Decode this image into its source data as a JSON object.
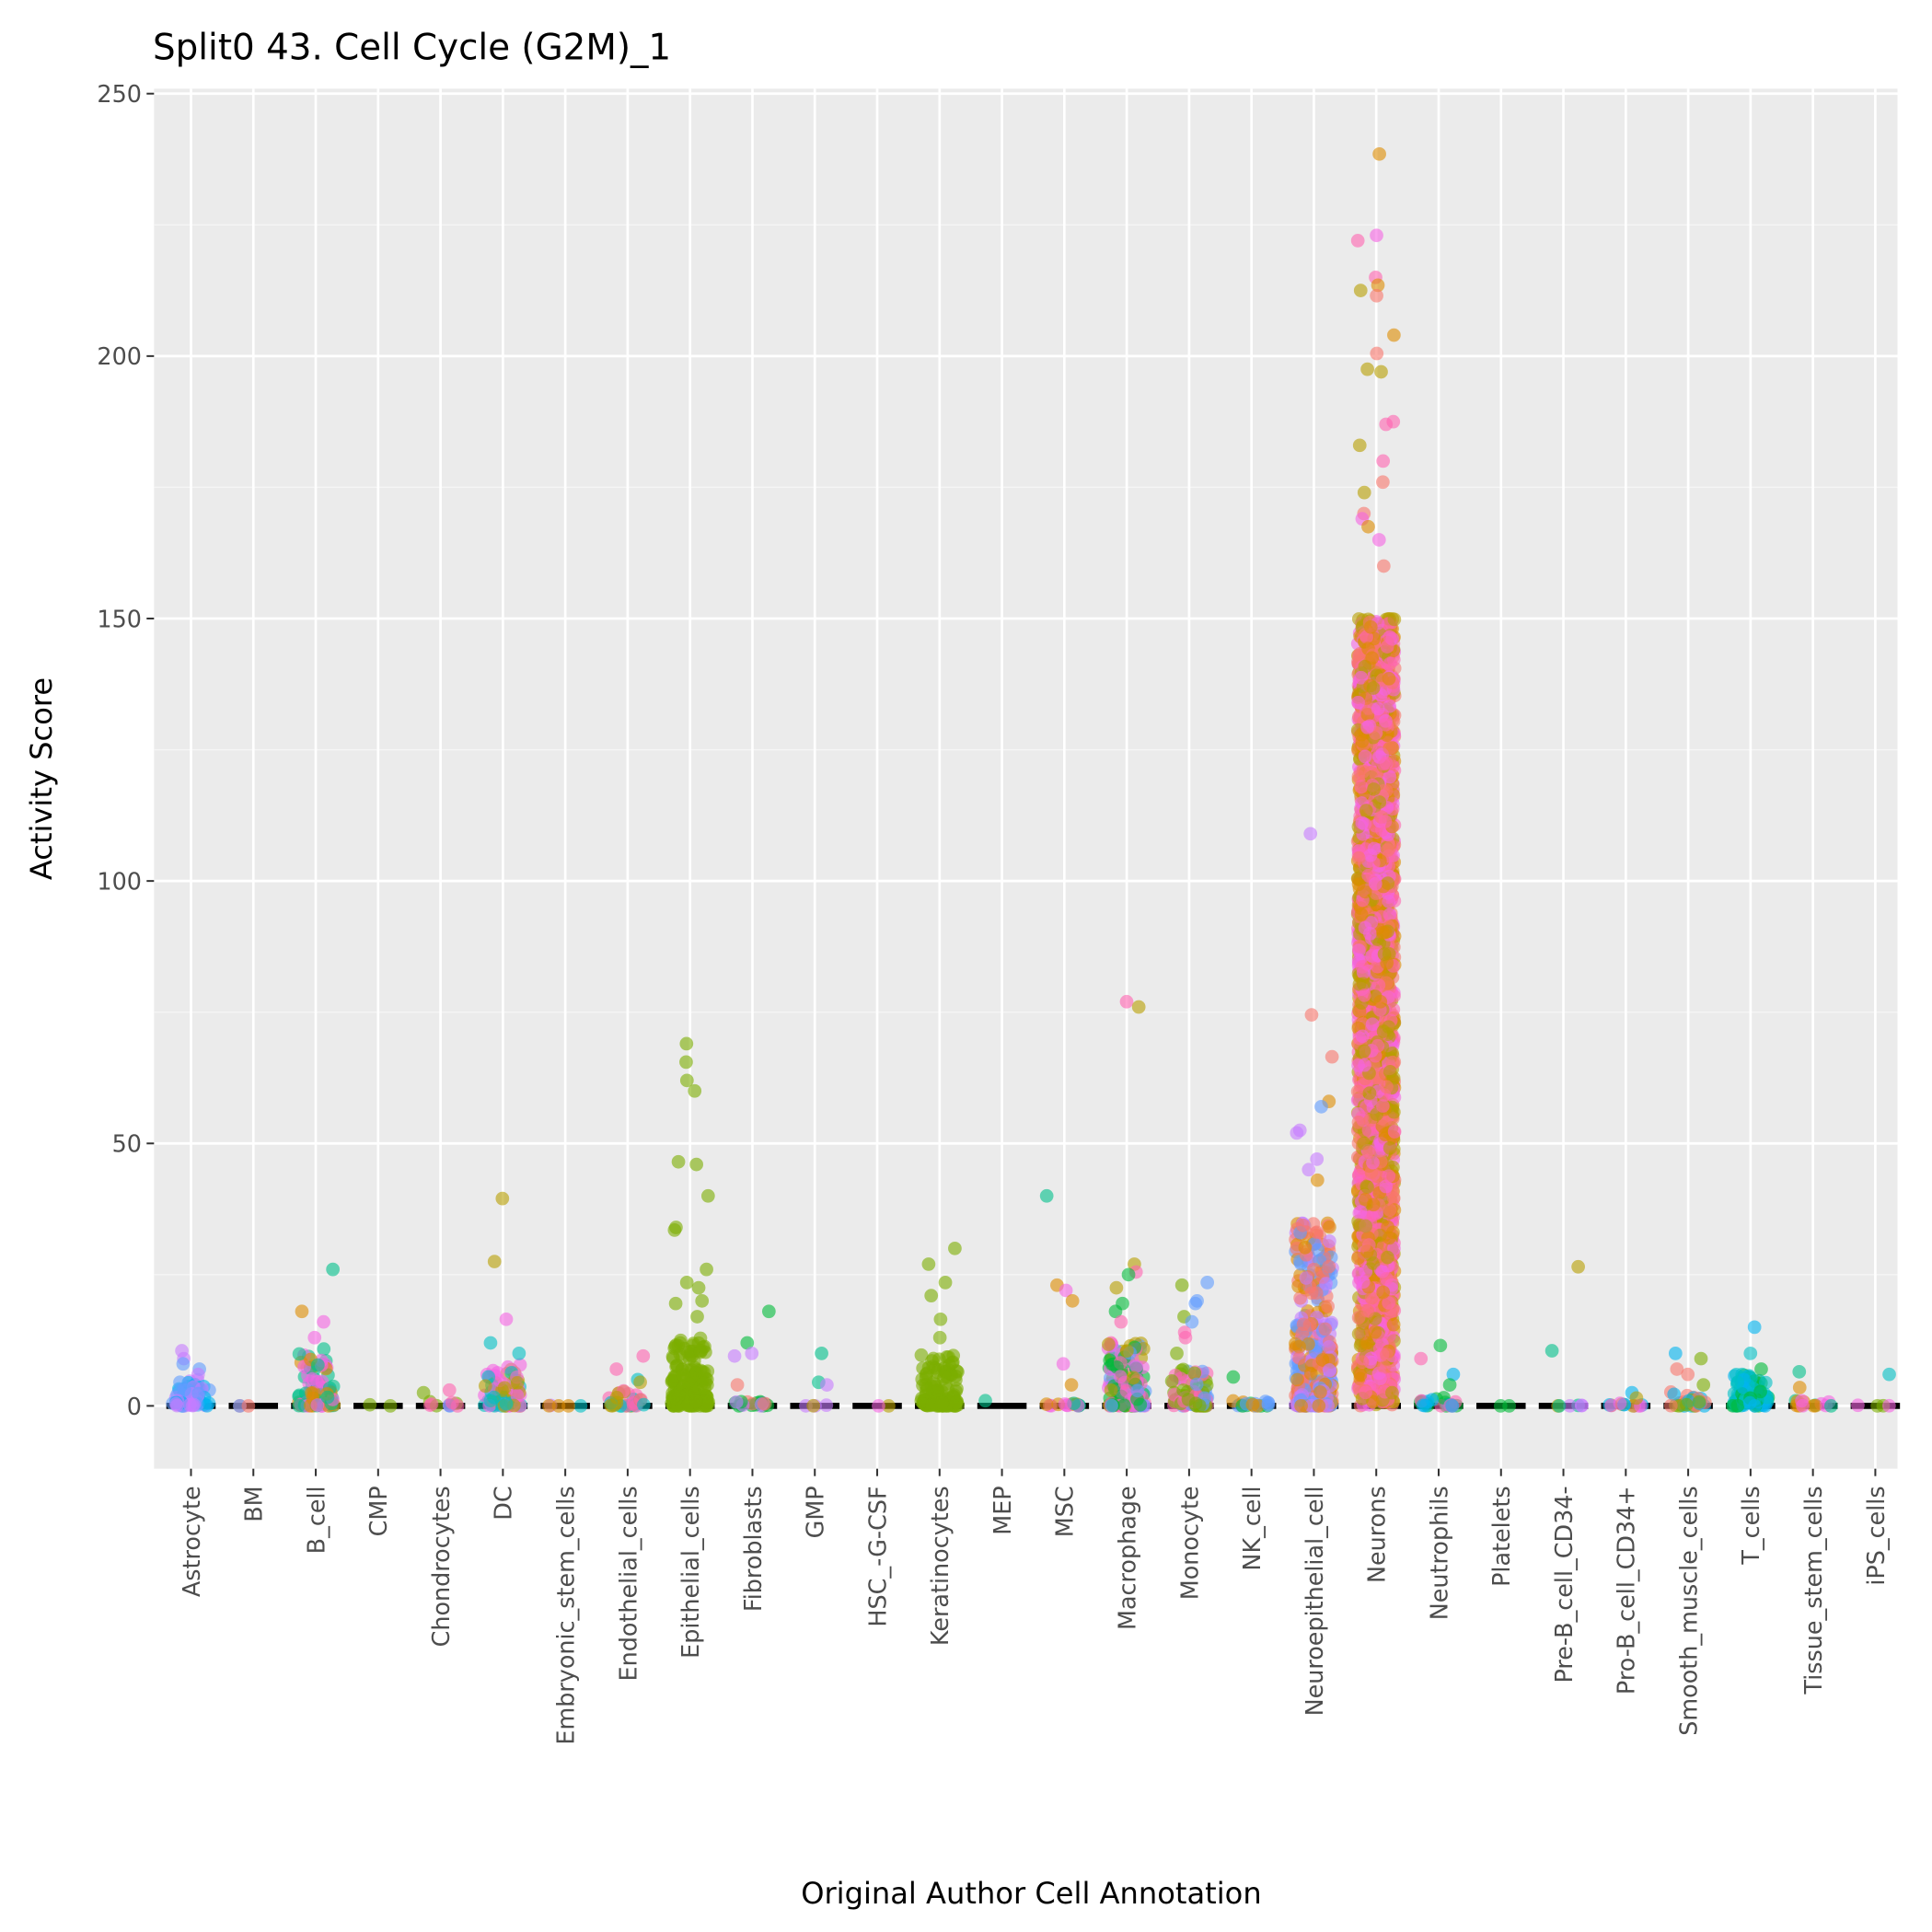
{
  "chart_data": {
    "type": "scatter",
    "title": "Split0 43. Cell Cycle (G2M)_1",
    "xlabel": "Original Author Cell Annotation",
    "ylabel": "Activity Score",
    "ylim": [
      -12,
      252
    ],
    "yticks": [
      0,
      50,
      100,
      150,
      200,
      250
    ],
    "grid": true,
    "legend": "none",
    "categories": [
      "Astrocyte",
      "BM",
      "B_cell",
      "CMP",
      "Chondrocytes",
      "DC",
      "Embryonic_stem_cells",
      "Endothelial_cells",
      "Epithelial_cells",
      "Fibroblasts",
      "GMP",
      "HSC_-G-CSF",
      "Keratinocytes",
      "MEP",
      "MSC",
      "Macrophage",
      "Monocyte",
      "NK_cell",
      "Neuroepithelial_cell",
      "Neurons",
      "Neutrophils",
      "Platelets",
      "Pre-B_cell_CD34-",
      "Pro-B_cell_CD34+",
      "Smooth_muscle_cells",
      "T_cells",
      "Tissue_stem_cells",
      "iPS_cells"
    ],
    "series": [
      {
        "category": "Astrocyte",
        "dense_max": 5,
        "n": 60,
        "outliers": [
          10.5,
          9,
          8,
          7,
          6
        ]
      },
      {
        "category": "BM",
        "dense_max": 0,
        "n": 3,
        "outliers": []
      },
      {
        "category": "B_cell",
        "dense_max": 12,
        "n": 80,
        "outliers": [
          26,
          18,
          16,
          13
        ]
      },
      {
        "category": "CMP",
        "dense_max": 0.3,
        "n": 2,
        "outliers": []
      },
      {
        "category": "Chondrocytes",
        "dense_max": 1,
        "n": 10,
        "outliers": [
          3,
          2.5
        ]
      },
      {
        "category": "DC",
        "dense_max": 8,
        "n": 80,
        "outliers": [
          39.5,
          27.5,
          16.5,
          12,
          10
        ]
      },
      {
        "category": "Embryonic_stem_cells",
        "dense_max": 0.3,
        "n": 5,
        "outliers": []
      },
      {
        "category": "Endothelial_cells",
        "dense_max": 3,
        "n": 30,
        "outliers": [
          9.5,
          7,
          5,
          4.5
        ]
      },
      {
        "category": "Epithelial_cells",
        "dense_max": 13,
        "n": 160,
        "outliers": [
          69,
          65.5,
          62,
          60,
          46.5,
          46,
          40,
          34,
          33.5,
          26,
          23.5,
          22.5,
          20,
          19.5,
          17
        ]
      },
      {
        "category": "Fibroblasts",
        "dense_max": 1,
        "n": 20,
        "outliers": [
          18,
          12,
          10,
          9.5,
          4
        ]
      },
      {
        "category": "GMP",
        "dense_max": 0.2,
        "n": 4,
        "outliers": [
          10,
          4.5,
          4
        ]
      },
      {
        "category": "HSC_-G-CSF",
        "dense_max": 0,
        "n": 2,
        "outliers": []
      },
      {
        "category": "Keratinocytes",
        "dense_max": 10,
        "n": 120,
        "outliers": [
          30,
          27,
          23.5,
          21,
          16.5,
          13
        ]
      },
      {
        "category": "MEP",
        "dense_max": 1.5,
        "n": 1,
        "outliers": []
      },
      {
        "category": "MSC",
        "dense_max": 0.5,
        "n": 15,
        "outliers": [
          40,
          23,
          22,
          20,
          8,
          4
        ]
      },
      {
        "category": "Macrophage",
        "dense_max": 12,
        "n": 160,
        "outliers": [
          77,
          76,
          27,
          25.5,
          25,
          22.5,
          19.5,
          18,
          16
        ]
      },
      {
        "category": "Monocyte",
        "dense_max": 7,
        "n": 90,
        "outliers": [
          23.5,
          23,
          20,
          19.5,
          17,
          16,
          14,
          13,
          10
        ]
      },
      {
        "category": "NK_cell",
        "dense_max": 1,
        "n": 20,
        "outliers": [
          5.5
        ]
      },
      {
        "category": "Neuroepithelial_cell",
        "dense_max": 35,
        "n": 400,
        "outliers": [
          109,
          74.5,
          66.5,
          58,
          57,
          52.5,
          52,
          47,
          45,
          43
        ]
      },
      {
        "category": "Neurons",
        "dense_max": 150,
        "n": 2500,
        "outliers": [
          238.5,
          223,
          222,
          215,
          213.5,
          212.5,
          211.5,
          204,
          200.5,
          197.5,
          197,
          187.5,
          187,
          183,
          180,
          176,
          174,
          170,
          169,
          167.5,
          165,
          160
        ]
      },
      {
        "category": "Neutrophils",
        "dense_max": 2,
        "n": 25,
        "outliers": [
          11.5,
          9,
          6,
          4
        ]
      },
      {
        "category": "Platelets",
        "dense_max": 0,
        "n": 2,
        "outliers": []
      },
      {
        "category": "Pre-B_cell_CD34-",
        "dense_max": 0.2,
        "n": 6,
        "outliers": [
          26.5,
          10.5
        ]
      },
      {
        "category": "Pro-B_cell_CD34+",
        "dense_max": 0.5,
        "n": 12,
        "outliers": [
          2.5,
          1.5
        ]
      },
      {
        "category": "Smooth_muscle_cells",
        "dense_max": 3,
        "n": 30,
        "outliers": [
          10,
          9,
          7,
          6,
          4
        ]
      },
      {
        "category": "T_cells",
        "dense_max": 6,
        "n": 100,
        "outliers": [
          15,
          10,
          7
        ]
      },
      {
        "category": "Tissue_stem_cells",
        "dense_max": 1,
        "n": 15,
        "outliers": [
          6.5,
          3.5
        ]
      },
      {
        "category": "iPS_cells",
        "dense_max": 0.2,
        "n": 4,
        "outliers": [
          6
        ]
      }
    ],
    "palette": [
      "#F8766D",
      "#DE8C00",
      "#B79F00",
      "#7CAE00",
      "#00BA38",
      "#00C08B",
      "#00BFC4",
      "#00B4F0",
      "#619CFF",
      "#C77CFF",
      "#F564E3",
      "#FF64B0"
    ]
  }
}
